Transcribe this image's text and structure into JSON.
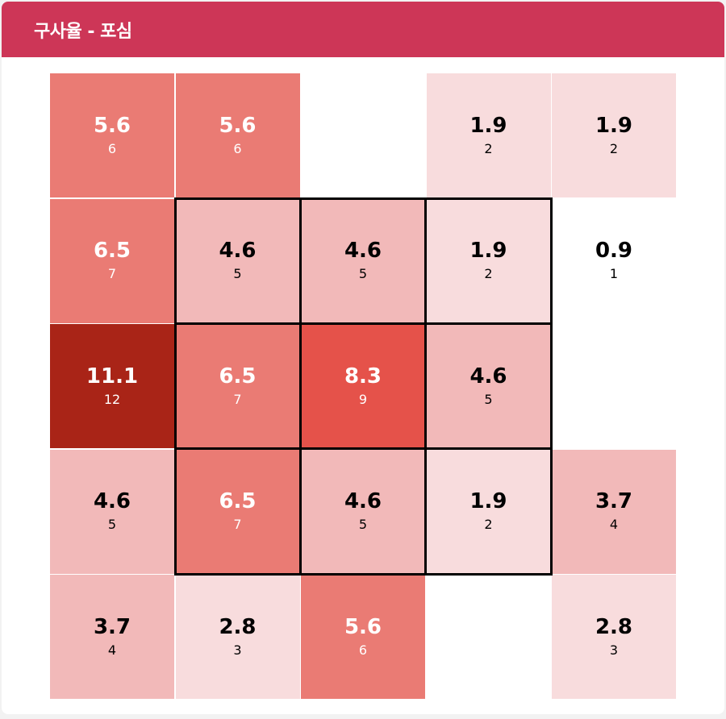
{
  "header": {
    "title": "구사율 - 포심"
  },
  "chart_data": {
    "type": "heatmap",
    "title": "구사율 - 포심",
    "rows": 5,
    "cols": 5,
    "cells": [
      [
        {
          "pct": "5.6",
          "count": "6",
          "color": "#ea7b74",
          "text_color": "#ffffff"
        },
        {
          "pct": "5.6",
          "count": "6",
          "color": "#ea7b74",
          "text_color": "#ffffff"
        },
        null,
        {
          "pct": "1.9",
          "count": "2",
          "color": "#f8dcdd",
          "text_color": "#000000"
        },
        {
          "pct": "1.9",
          "count": "2",
          "color": "#f8dcdd",
          "text_color": "#000000"
        }
      ],
      [
        {
          "pct": "6.5",
          "count": "7",
          "color": "#ea7b74",
          "text_color": "#ffffff"
        },
        {
          "pct": "4.6",
          "count": "5",
          "color": "#f2b9b9",
          "text_color": "#000000"
        },
        {
          "pct": "4.6",
          "count": "5",
          "color": "#f2b9b9",
          "text_color": "#000000"
        },
        {
          "pct": "1.9",
          "count": "2",
          "color": "#f8dcdd",
          "text_color": "#000000"
        },
        {
          "pct": "0.9",
          "count": "1",
          "color": "#ffffff",
          "text_color": "#000000"
        }
      ],
      [
        {
          "pct": "11.1",
          "count": "12",
          "color": "#a92417",
          "text_color": "#ffffff"
        },
        {
          "pct": "6.5",
          "count": "7",
          "color": "#ea7b74",
          "text_color": "#ffffff"
        },
        {
          "pct": "8.3",
          "count": "9",
          "color": "#e5524a",
          "text_color": "#ffffff"
        },
        {
          "pct": "4.6",
          "count": "5",
          "color": "#f2b9b9",
          "text_color": "#000000"
        },
        null
      ],
      [
        {
          "pct": "4.6",
          "count": "5",
          "color": "#f2b9b9",
          "text_color": "#000000"
        },
        {
          "pct": "6.5",
          "count": "7",
          "color": "#ea7b74",
          "text_color": "#ffffff"
        },
        {
          "pct": "4.6",
          "count": "5",
          "color": "#f2b9b9",
          "text_color": "#000000"
        },
        {
          "pct": "1.9",
          "count": "2",
          "color": "#f8dcdd",
          "text_color": "#000000"
        },
        {
          "pct": "3.7",
          "count": "4",
          "color": "#f2b9b9",
          "text_color": "#000000"
        }
      ],
      [
        {
          "pct": "3.7",
          "count": "4",
          "color": "#f2b9b9",
          "text_color": "#000000"
        },
        {
          "pct": "2.8",
          "count": "3",
          "color": "#f8dcdd",
          "text_color": "#000000"
        },
        {
          "pct": "5.6",
          "count": "6",
          "color": "#ea7b74",
          "text_color": "#ffffff"
        },
        null,
        {
          "pct": "2.8",
          "count": "3",
          "color": "#f8dcdd",
          "text_color": "#000000"
        }
      ]
    ],
    "strike_zone": {
      "rows": [
        1,
        3
      ],
      "cols": [
        1,
        3
      ]
    }
  }
}
